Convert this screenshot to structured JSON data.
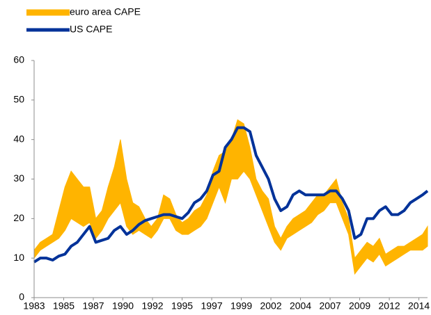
{
  "chart_data": {
    "type": "band-line",
    "x": [
      1983,
      1983.5,
      1984,
      1984.5,
      1985,
      1985.5,
      1986,
      1986.5,
      1987,
      1987.5,
      1988,
      1988.5,
      1989,
      1989.5,
      1990,
      1990.5,
      1991,
      1991.5,
      1992,
      1992.5,
      1993,
      1993.5,
      1994,
      1994.5,
      1995,
      1995.5,
      1996,
      1996.5,
      1997,
      1997.5,
      1998,
      1998.5,
      1999,
      1999.5,
      2000,
      2000.5,
      2001,
      2001.5,
      2002,
      2002.5,
      2003,
      2003.5,
      2004,
      2004.5,
      2005,
      2005.5,
      2006,
      2006.5,
      2007,
      2007.5,
      2008,
      2008.5,
      2009,
      2009.5,
      2010,
      2010.5,
      2011,
      2011.5,
      2012,
      2012.5,
      2013,
      2013.5,
      2014,
      2014.5,
      2014.9
    ],
    "series": [
      {
        "name": "euro area CAPE",
        "color": "#ffb400",
        "low": [
          10,
          12,
          13,
          14,
          15,
          17,
          20,
          19,
          18,
          19,
          15,
          17,
          20,
          22,
          24,
          18,
          16,
          17,
          16,
          15,
          17,
          20,
          20,
          17,
          16,
          16,
          17,
          18,
          20,
          24,
          28,
          24,
          30,
          30,
          32,
          30,
          26,
          22,
          18,
          14,
          12,
          15,
          16,
          17,
          18,
          19,
          21,
          22,
          24,
          24,
          20,
          16,
          6,
          8,
          10,
          9,
          11,
          8,
          9,
          10,
          11,
          12,
          12,
          12,
          13
        ],
        "high": [
          12,
          14,
          15,
          16,
          22,
          28,
          32,
          30,
          28,
          28,
          20,
          22,
          28,
          33,
          40,
          30,
          24,
          23,
          20,
          18,
          20,
          26,
          25,
          21,
          19,
          20,
          22,
          23,
          26,
          32,
          36,
          37,
          40,
          45,
          44,
          38,
          30,
          27,
          25,
          18,
          15,
          18,
          20,
          21,
          22,
          24,
          26,
          26,
          28,
          30,
          24,
          20,
          10,
          12,
          14,
          13,
          15,
          11,
          12,
          13,
          13,
          14,
          15,
          16,
          18
        ]
      },
      {
        "name": "US CAPE",
        "color": "#003299",
        "values": [
          9,
          10,
          10,
          9.5,
          10.5,
          11,
          13,
          14,
          16,
          18,
          14,
          14.5,
          15,
          17,
          18,
          16,
          17,
          18.5,
          19.5,
          20,
          20.5,
          21,
          21,
          20.5,
          20,
          21.5,
          24,
          25,
          27,
          31,
          32,
          38,
          40,
          43,
          43,
          42,
          36,
          33,
          30,
          25,
          22,
          23,
          26,
          27,
          26,
          26,
          26,
          26,
          27,
          27,
          25,
          22,
          15,
          16,
          20,
          20,
          22,
          23,
          21,
          21,
          22,
          24,
          25,
          26,
          27
        ]
      }
    ],
    "xlim": [
      1983,
      2014.9
    ],
    "xticks": [
      1983,
      {
        "value": 1985.4,
        "label": "1985"
      },
      {
        "value": 1987.8,
        "label": "1987"
      },
      {
        "value": 1990.2,
        "label": "1990"
      },
      {
        "value": 1992.6,
        "label": "1992"
      },
      1995,
      {
        "value": 1997.4,
        "label": "1997"
      },
      {
        "value": 1999.8,
        "label": "1999"
      },
      {
        "value": 2002.2,
        "label": "2002"
      },
      {
        "value": 2004.6,
        "label": "2004"
      },
      2007,
      {
        "value": 2009.4,
        "label": "2009"
      },
      {
        "value": 2011.8,
        "label": "2012"
      },
      {
        "value": 2014.2,
        "label": "2014"
      }
    ],
    "ylim": [
      0,
      60
    ],
    "yticks": [
      0,
      10,
      20,
      30,
      40,
      50,
      60
    ],
    "grid": false,
    "legend": "top-left"
  }
}
